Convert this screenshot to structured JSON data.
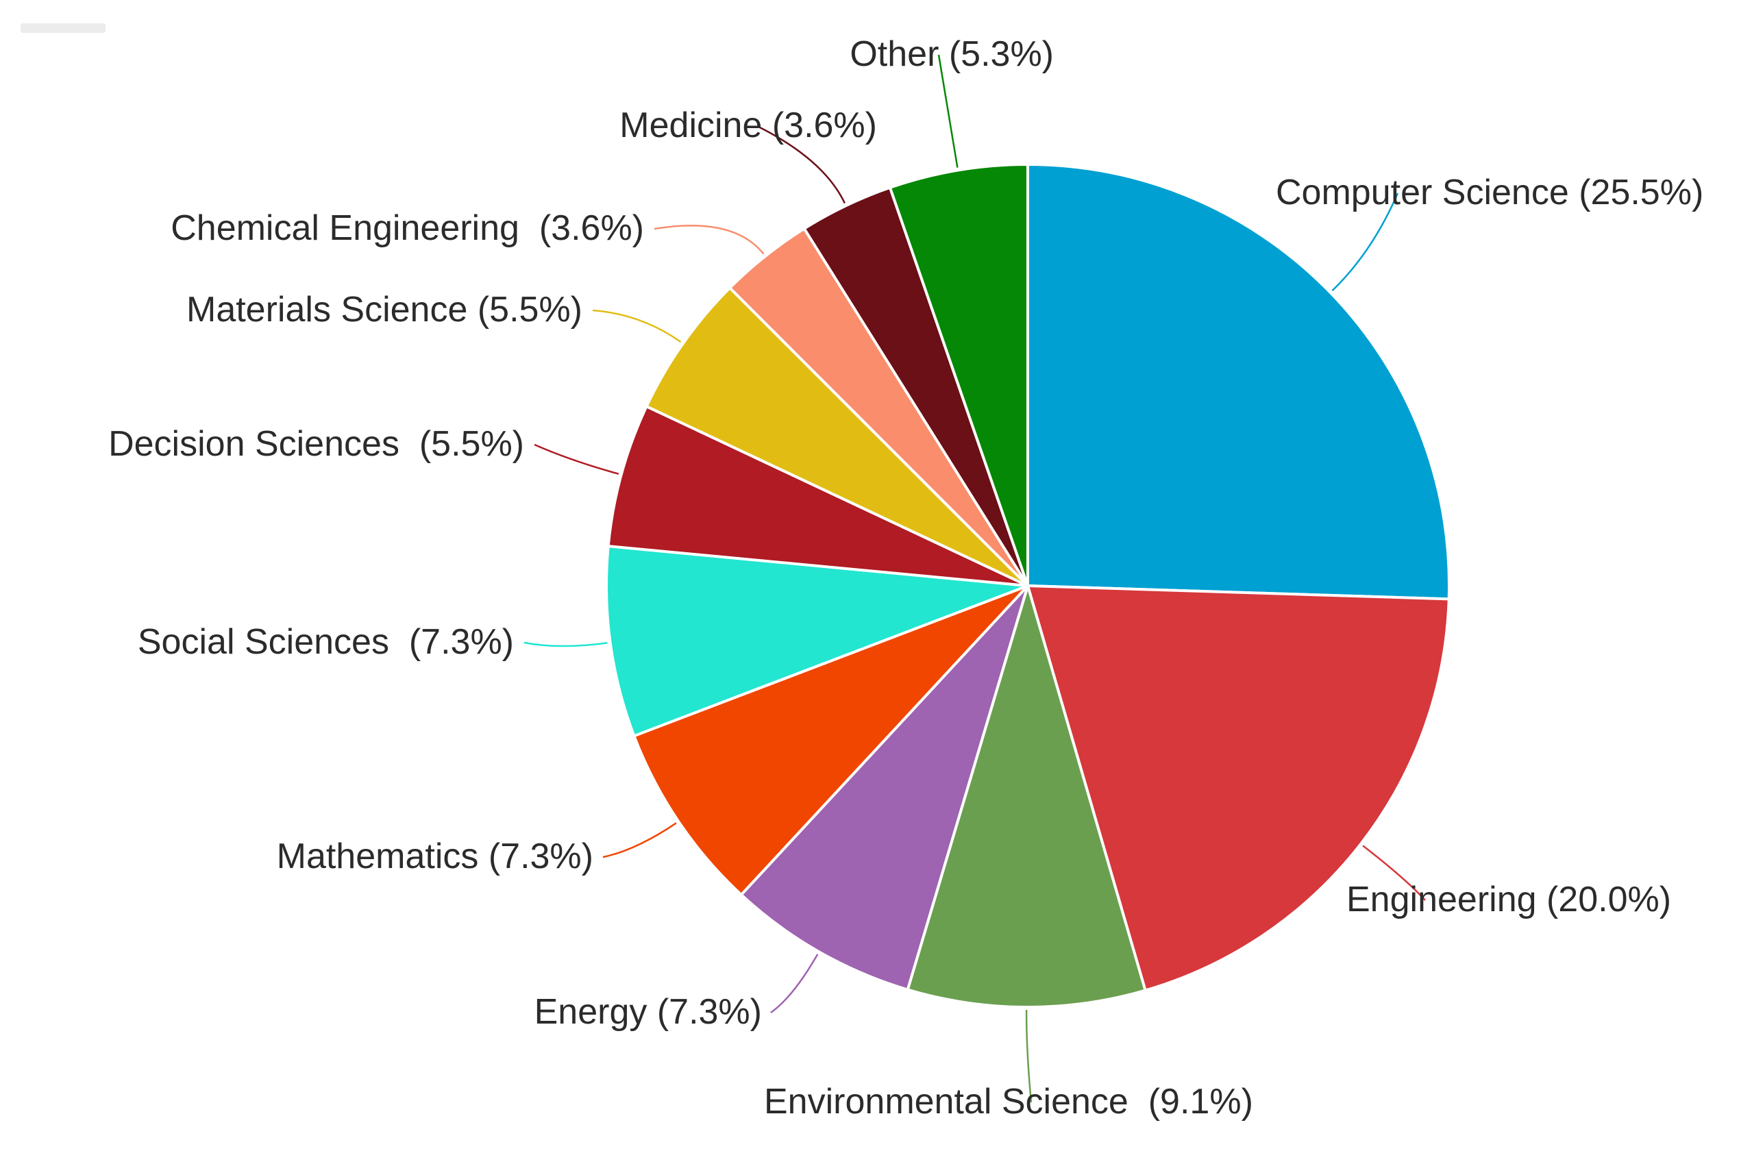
{
  "chart_data": {
    "type": "pie",
    "title": "",
    "unit": "%",
    "start_angle_deg": 0,
    "direction": "clockwise",
    "slices": [
      {
        "name": "Computer Science",
        "label": "Computer Science (25.5%)",
        "value": 25.5,
        "color": "#00a0d2"
      },
      {
        "name": "Engineering",
        "label": "Engineering (20.0%)",
        "value": 20.0,
        "color": "#d6383c"
      },
      {
        "name": "Environmental Science",
        "label": "Environmental Science  (9.1%)",
        "value": 9.1,
        "color": "#6b9f50"
      },
      {
        "name": "Energy",
        "label": "Energy (7.3%)",
        "value": 7.3,
        "color": "#9e63b1"
      },
      {
        "name": "Mathematics",
        "label": "Mathematics (7.3%)",
        "value": 7.3,
        "color": "#f04600"
      },
      {
        "name": "Social Sciences",
        "label": "Social Sciences  (7.3%)",
        "value": 7.3,
        "color": "#22e6d0"
      },
      {
        "name": "Decision Sciences",
        "label": "Decision Sciences  (5.5%)",
        "value": 5.5,
        "color": "#b01b24"
      },
      {
        "name": "Materials Science",
        "label": "Materials Science (5.5%)",
        "value": 5.5,
        "color": "#e1bd14"
      },
      {
        "name": "Chemical Engineering",
        "label": "Chemical Engineering  (3.6%)",
        "value": 3.6,
        "color": "#f98d6c"
      },
      {
        "name": "Medicine",
        "label": "Medicine (3.6%)",
        "value": 3.6,
        "color": "#6a1016"
      },
      {
        "name": "Other",
        "label": "Other (5.3%)",
        "value": 5.3,
        "color": "#058805"
      }
    ],
    "legend": "none",
    "labels": "outside-with-leader-lines"
  }
}
